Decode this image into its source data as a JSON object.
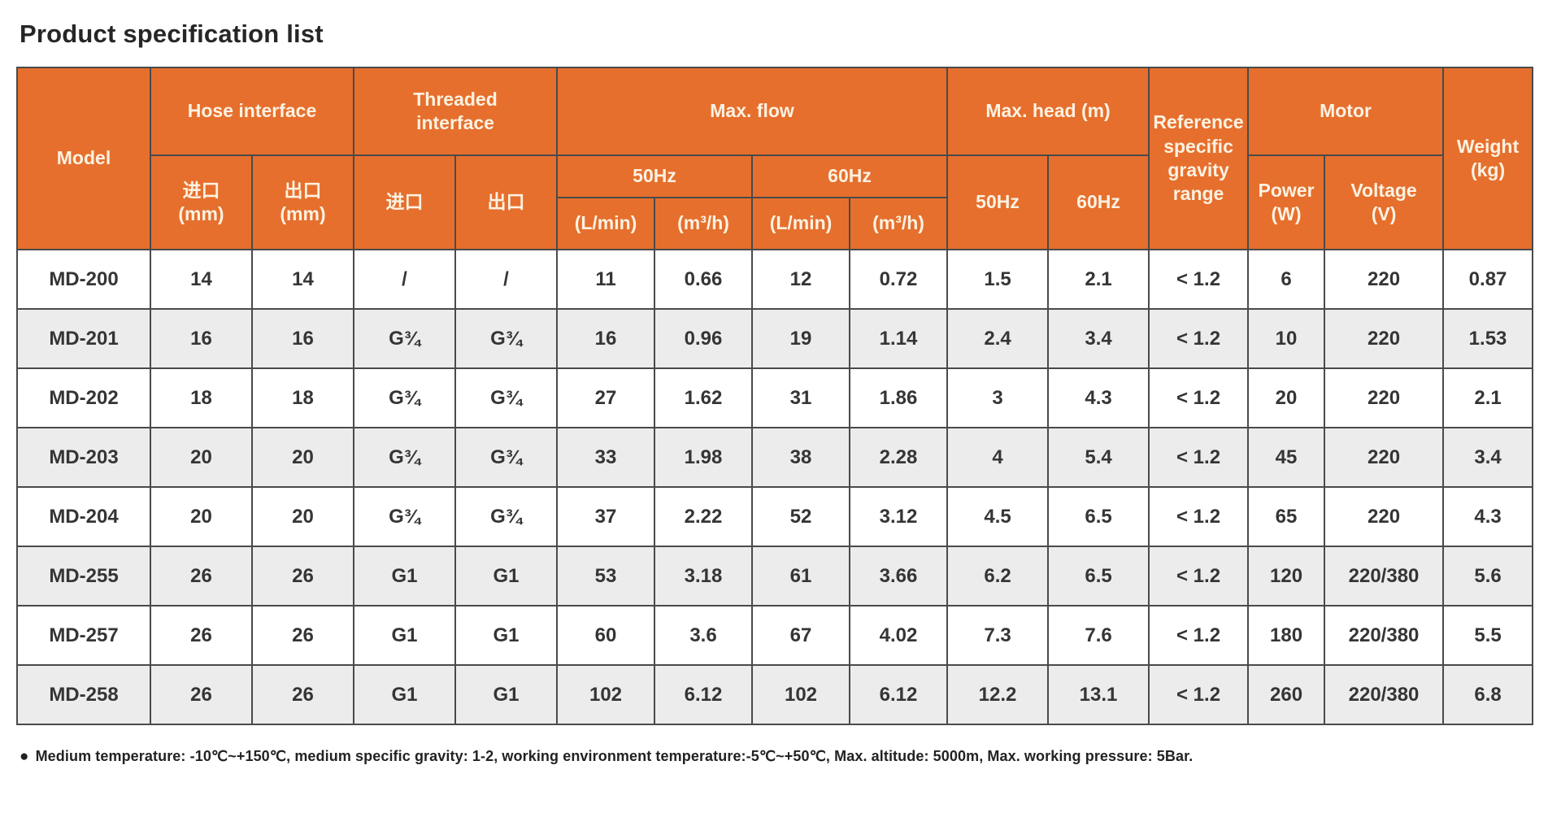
{
  "title": "Product specification list",
  "accent_color": "#e66f2d",
  "alt_row_color": "#ececec",
  "table": {
    "header": {
      "model": "Model",
      "hose_interface": "Hose interface",
      "threaded_interface": "Threaded\ninterface",
      "max_flow": "Max. flow",
      "max_head": "Max. head (m)",
      "reference": "Reference specific gravity range",
      "motor": "Motor",
      "weight": "Weight\n(kg)",
      "hose_inlet": "进口\n(mm)",
      "hose_outlet": "出口\n(mm)",
      "thread_inlet": "进口",
      "thread_outlet": "出口",
      "flow_50hz": "50Hz",
      "flow_60hz": "60Hz",
      "head_50hz": "50Hz",
      "head_60hz": "60Hz",
      "l_min_50": "(L/min)",
      "m3_h_50": "(m³/h)",
      "l_min_60": "(L/min)",
      "m3_h_60": "(m³/h)",
      "power": "Power\n(W)",
      "voltage": "Voltage\n(V)"
    },
    "rows": [
      {
        "model": "MD-200",
        "cells": [
          "14",
          "14",
          "/",
          "/",
          "11",
          "0.66",
          "12",
          "0.72",
          "1.5",
          "2.1",
          "< 1.2",
          "6",
          "220",
          "0.87"
        ]
      },
      {
        "model": "MD-201",
        "cells": [
          "16",
          "16",
          "G¾",
          "G¾",
          "16",
          "0.96",
          "19",
          "1.14",
          "2.4",
          "3.4",
          "< 1.2",
          "10",
          "220",
          "1.53"
        ]
      },
      {
        "model": "MD-202",
        "cells": [
          "18",
          "18",
          "G¾",
          "G¾",
          "27",
          "1.62",
          "31",
          "1.86",
          "3",
          "4.3",
          "< 1.2",
          "20",
          "220",
          "2.1"
        ]
      },
      {
        "model": "MD-203",
        "cells": [
          "20",
          "20",
          "G¾",
          "G¾",
          "33",
          "1.98",
          "38",
          "2.28",
          "4",
          "5.4",
          "< 1.2",
          "45",
          "220",
          "3.4"
        ]
      },
      {
        "model": "MD-204",
        "cells": [
          "20",
          "20",
          "G¾",
          "G¾",
          "37",
          "2.22",
          "52",
          "3.12",
          "4.5",
          "6.5",
          "< 1.2",
          "65",
          "220",
          "4.3"
        ]
      },
      {
        "model": "MD-255",
        "cells": [
          "26",
          "26",
          "G1",
          "G1",
          "53",
          "3.18",
          "61",
          "3.66",
          "6.2",
          "6.5",
          "< 1.2",
          "120",
          "220/380",
          "5.6"
        ]
      },
      {
        "model": "MD-257",
        "cells": [
          "26",
          "26",
          "G1",
          "G1",
          "60",
          "3.6",
          "67",
          "4.02",
          "7.3",
          "7.6",
          "< 1.2",
          "180",
          "220/380",
          "5.5"
        ]
      },
      {
        "model": "MD-258",
        "cells": [
          "26",
          "26",
          "G1",
          "G1",
          "102",
          "6.12",
          "102",
          "6.12",
          "12.2",
          "13.1",
          "< 1.2",
          "260",
          "220/380",
          "6.8"
        ]
      }
    ]
  },
  "footnote": {
    "bullet": "●",
    "text": "Medium temperature: -10℃~+150℃, medium specific gravity: 1-2, working environment temperature:-5℃~+50℃, Max. altitude: 5000m, Max. working pressure: 5Bar."
  }
}
